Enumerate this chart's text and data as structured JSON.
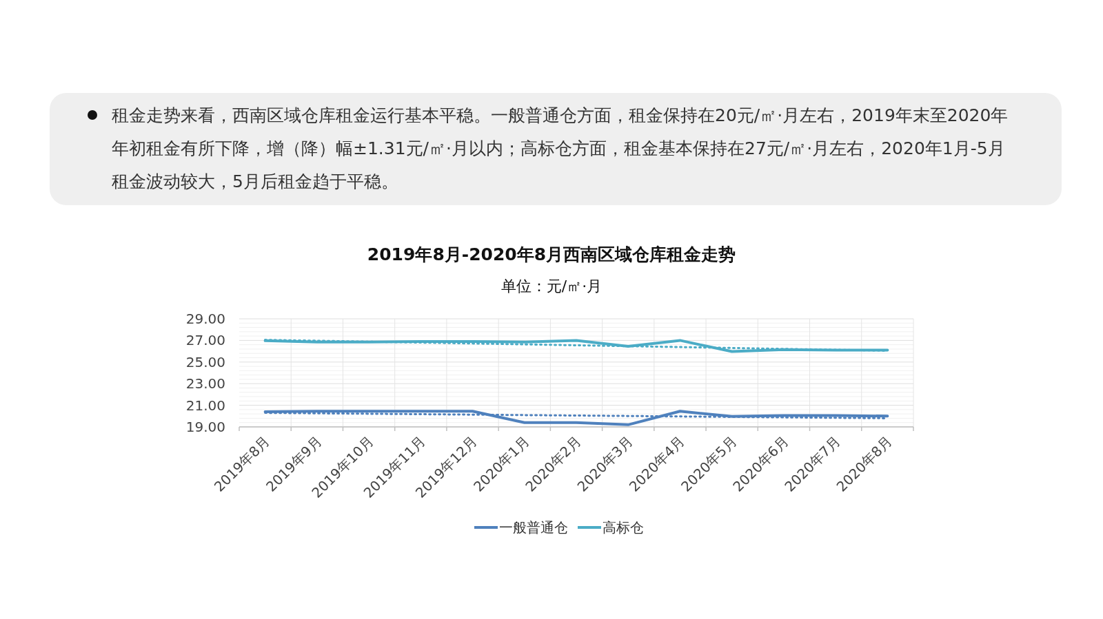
{
  "chart_data": {
    "type": "line",
    "title": "2019年8月-2020年8月西南区域仓库租金走势",
    "subtitle": "单位：元/㎡·月",
    "annotations": [
      "租金走势来看，西南区域仓库租金运行基本平稳。一般普通仓方面，租金保持在20元/㎡·月左右，2019年末至2020年年初租金有所下降，增（降）幅±1.31元/㎡·月以内；高标仓方面，租金基本保持在27元/㎡·月左右，2020年1月-5月租金波动较大，5月后租金趋于平稳。"
    ],
    "categories": [
      "2019年8月",
      "2019年9月",
      "2019年10月",
      "2019年11月",
      "2019年12月",
      "2020年1月",
      "2020年2月",
      "2020年3月",
      "2020年4月",
      "2020年5月",
      "2020年6月",
      "2020年7月",
      "2020年8月"
    ],
    "series": [
      {
        "name": "一般普通仓",
        "color": "#4f81bd",
        "values": [
          20.4,
          20.45,
          20.45,
          20.45,
          20.45,
          19.4,
          19.4,
          19.2,
          20.45,
          19.97,
          20.05,
          20.05,
          20.0
        ]
      },
      {
        "name": "高标仓",
        "color": "#4bacc6",
        "values": [
          26.97,
          26.85,
          26.85,
          26.9,
          26.9,
          26.85,
          27.0,
          26.45,
          27.0,
          25.97,
          26.15,
          26.1,
          26.1
        ]
      },
      {
        "type": "line",
        "color": "#4f81bd",
        "line_style": "dotted",
        "x": [
          "2019年8月",
          "2020年8月"
        ],
        "values": [
          20.3,
          19.8
        ]
      },
      {
        "type": "line",
        "color": "#4bacc6",
        "line_style": "dotted",
        "x": [
          "2019年8月",
          "2020年8月"
        ],
        "values": [
          27.05,
          26.05
        ]
      }
    ],
    "ylim": [
      19,
      29
    ],
    "yticks": [
      {
        "value": 19,
        "label": "19.00"
      },
      {
        "value": 21,
        "label": "21.00"
      },
      {
        "value": 23,
        "label": "23.00"
      },
      {
        "value": 25,
        "label": "25.00"
      },
      {
        "value": 27,
        "label": "27.00"
      },
      {
        "value": 29,
        "label": "29.00"
      }
    ],
    "grid": true,
    "legend": "bottom",
    "line_style": "solid",
    "marker": "none"
  }
}
